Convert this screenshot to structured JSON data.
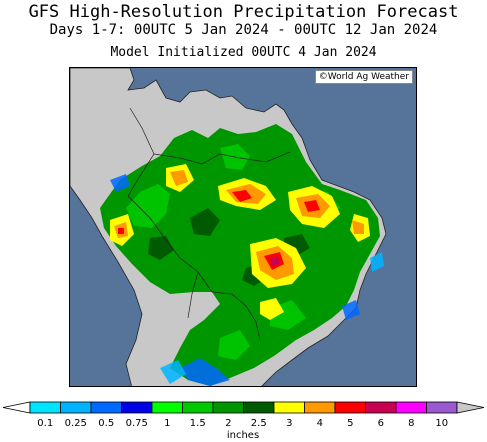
{
  "header": {
    "title": "GFS High-Resolution Precipitation Forecast",
    "subtitle": "Days 1-7: 00UTC 5 Jan 2024 - 00UTC 12 Jan 2024",
    "init": "Model Initialized 00UTC 4 Jan 2024"
  },
  "map": {
    "copyright": "©World Ag Weather",
    "ocean_color": "#56749a",
    "land_dry_color": "#c8c8c8"
  },
  "legend": {
    "units": "inches",
    "ticks": [
      "0.1",
      "0.25",
      "0.5",
      "0.75",
      "1",
      "1.5",
      "2",
      "2.5",
      "3",
      "4",
      "5",
      "6",
      "8",
      "10"
    ],
    "colors": [
      "#00e5ff",
      "#00b4ff",
      "#0069ff",
      "#0000e6",
      "#00ff00",
      "#00c800",
      "#009600",
      "#005a00",
      "#ffff00",
      "#ff9900",
      "#ff0000",
      "#c80050",
      "#ff00ff",
      "#9b59d0"
    ],
    "over_color": "#c8c8c8",
    "under_color": "#ffffff"
  }
}
